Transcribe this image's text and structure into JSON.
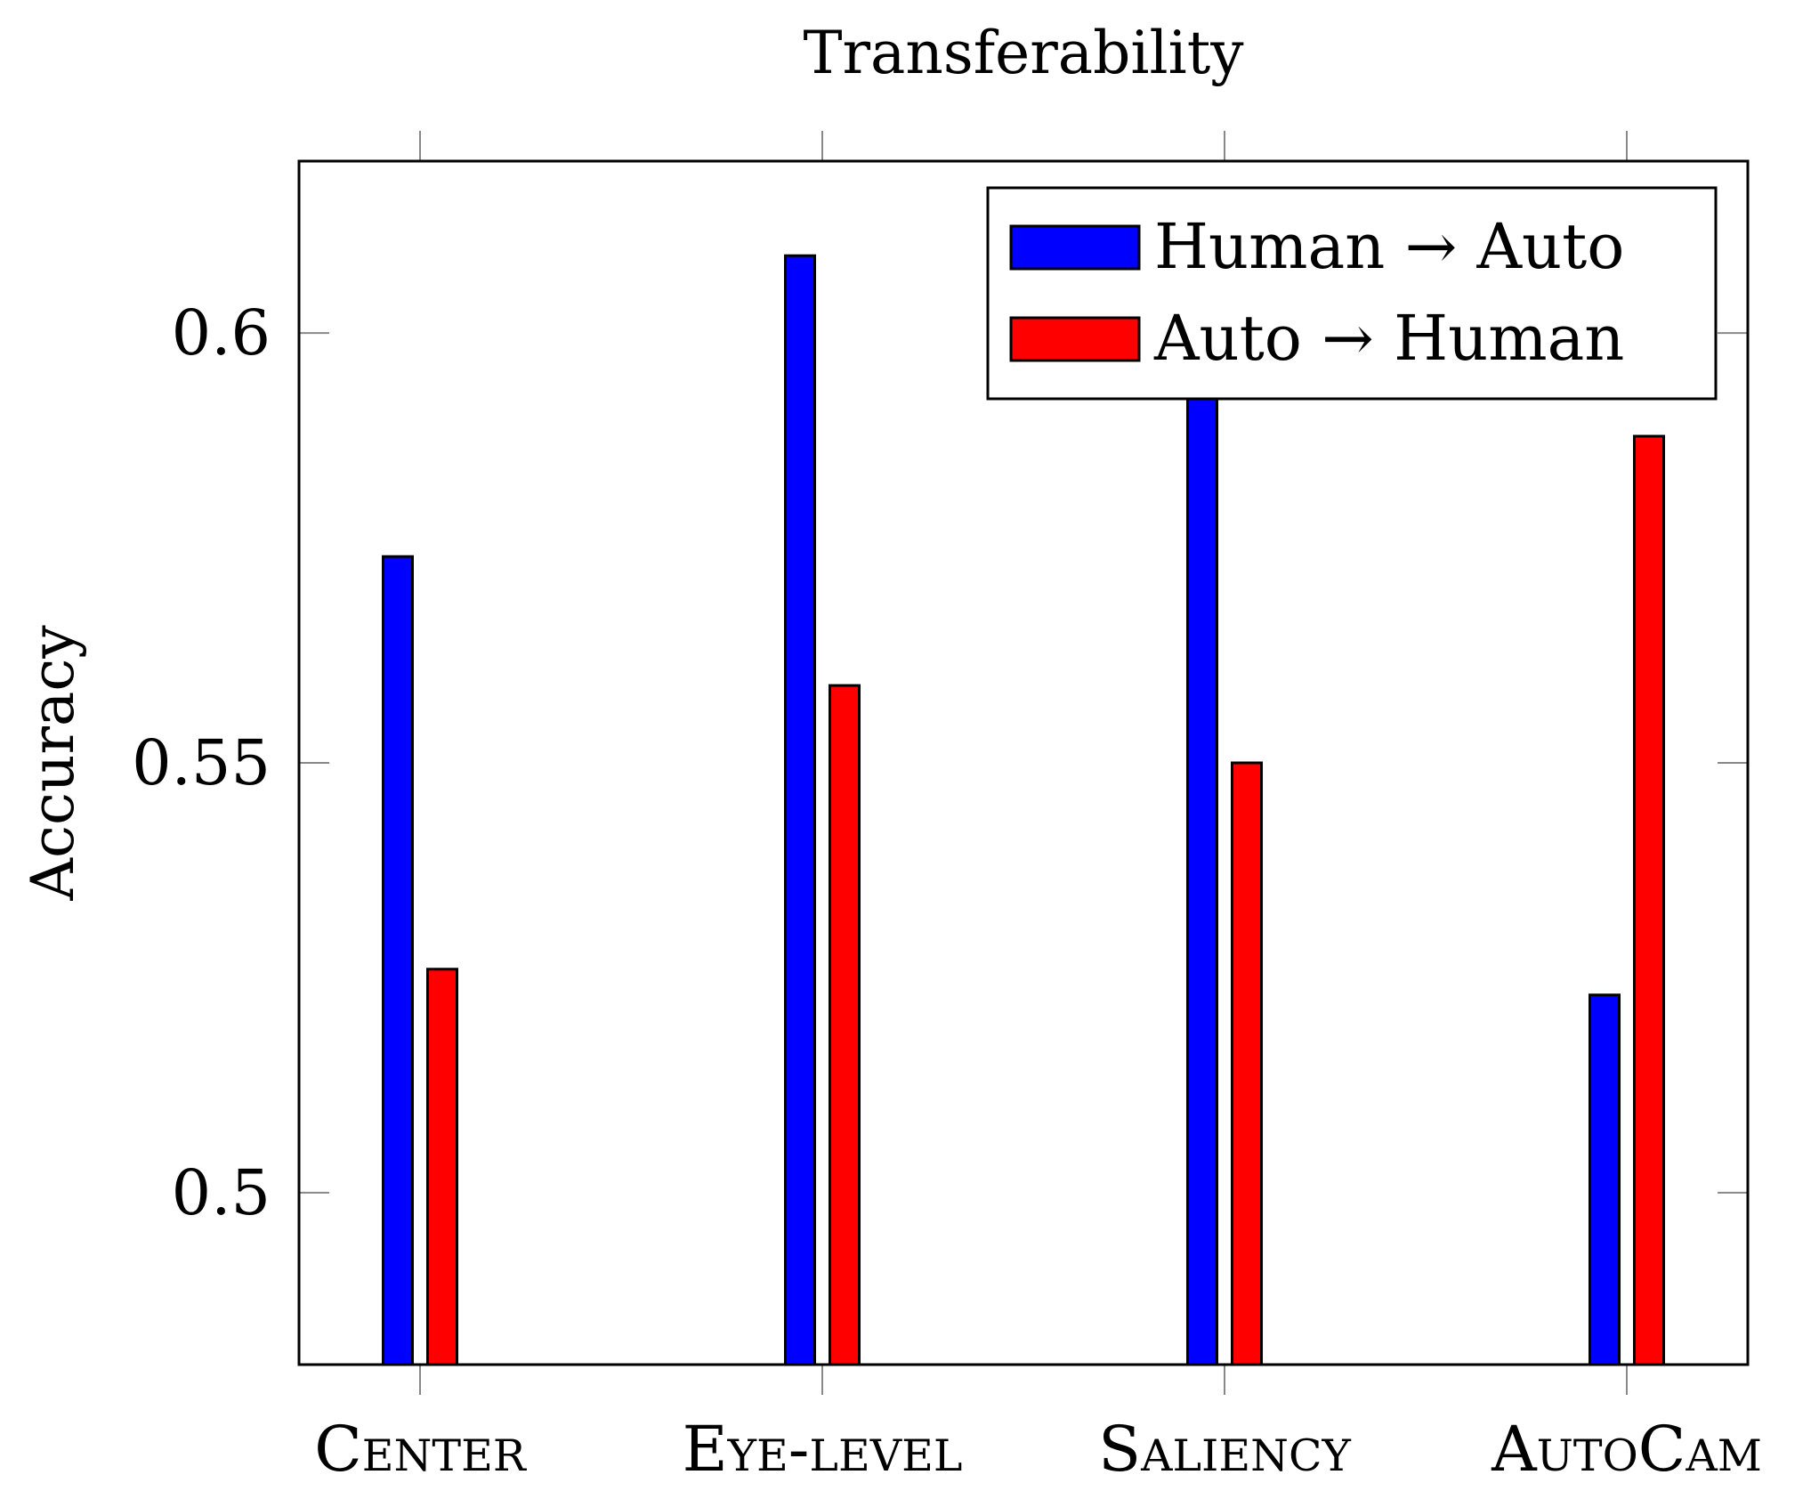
{
  "chart_data": {
    "type": "bar",
    "title": "Transferability",
    "xlabel": "",
    "ylabel": "Accuracy",
    "ylim": [
      0.48,
      0.62
    ],
    "yticks": [
      0.5,
      0.55,
      0.6
    ],
    "ytick_labels": [
      "0.5",
      "0.55",
      "0.6"
    ],
    "categories": [
      "Center",
      "Eye-level",
      "Saliency",
      "AutoCam"
    ],
    "series": [
      {
        "name": "Human → Auto",
        "color": "#0000ff",
        "values": [
          0.574,
          0.609,
          0.596,
          0.523
        ]
      },
      {
        "name": "Auto → Human",
        "color": "#ff0000",
        "values": [
          0.526,
          0.559,
          0.55,
          0.588
        ]
      }
    ],
    "grid": false,
    "legend_position": "top-right"
  }
}
